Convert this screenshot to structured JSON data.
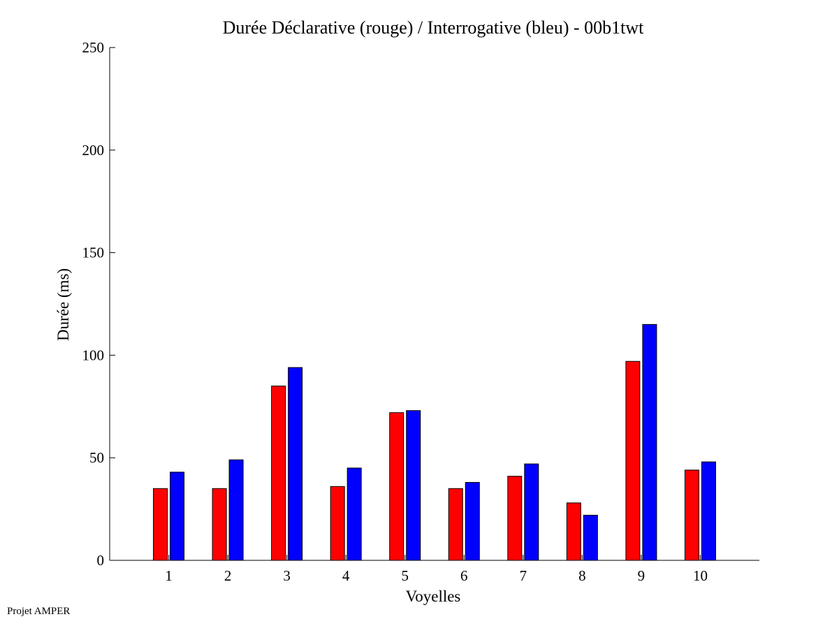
{
  "chart_data": {
    "type": "bar",
    "title": "Durée Déclarative (rouge) / Interrogative (bleu) - 00b1twt",
    "xlabel": "Voyelles",
    "ylabel": "Durée (ms)",
    "categories": [
      "1",
      "2",
      "3",
      "4",
      "5",
      "6",
      "7",
      "8",
      "9",
      "10"
    ],
    "ylim": [
      0,
      250
    ],
    "yticks": [
      0,
      50,
      100,
      150,
      200,
      250
    ],
    "xlim": [
      0,
      11
    ],
    "grid": false,
    "series": [
      {
        "color": "#ff0000",
        "values": [
          35,
          35,
          85,
          36,
          72,
          35,
          41,
          28,
          97,
          44
        ]
      },
      {
        "color": "#0000ff",
        "values": [
          43,
          49,
          94,
          45,
          73,
          38,
          47,
          22,
          115,
          48
        ]
      }
    ]
  },
  "footer": {
    "text": "Projet AMPER"
  }
}
